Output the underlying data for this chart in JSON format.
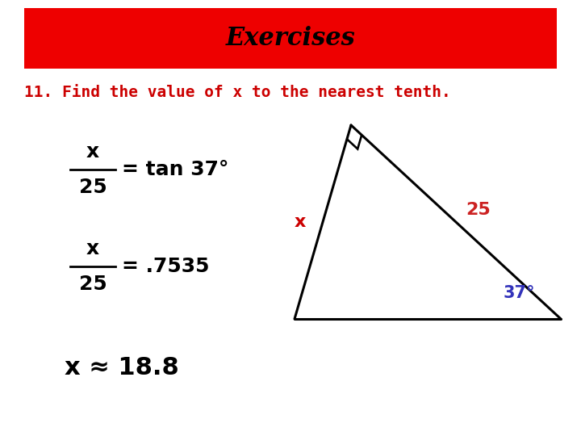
{
  "title": "Exercises",
  "title_bg_color": "#ee0000",
  "title_text_color": "#000000",
  "title_fontsize": 22,
  "subtitle": "11. Find the value of x to the nearest tenth.",
  "subtitle_color": "#cc0000",
  "subtitle_fontsize": 14,
  "bg_color": "#ffffff",
  "eq_color": "#000000",
  "eq_fontsize": 18,
  "eq3_fontsize": 22,
  "label_x_color": "#cc0000",
  "label_25_color": "#cc2222",
  "label_37_color": "#3333bb",
  "label_37_text": "37°",
  "line_color": "#000000",
  "line_width": 2.2
}
